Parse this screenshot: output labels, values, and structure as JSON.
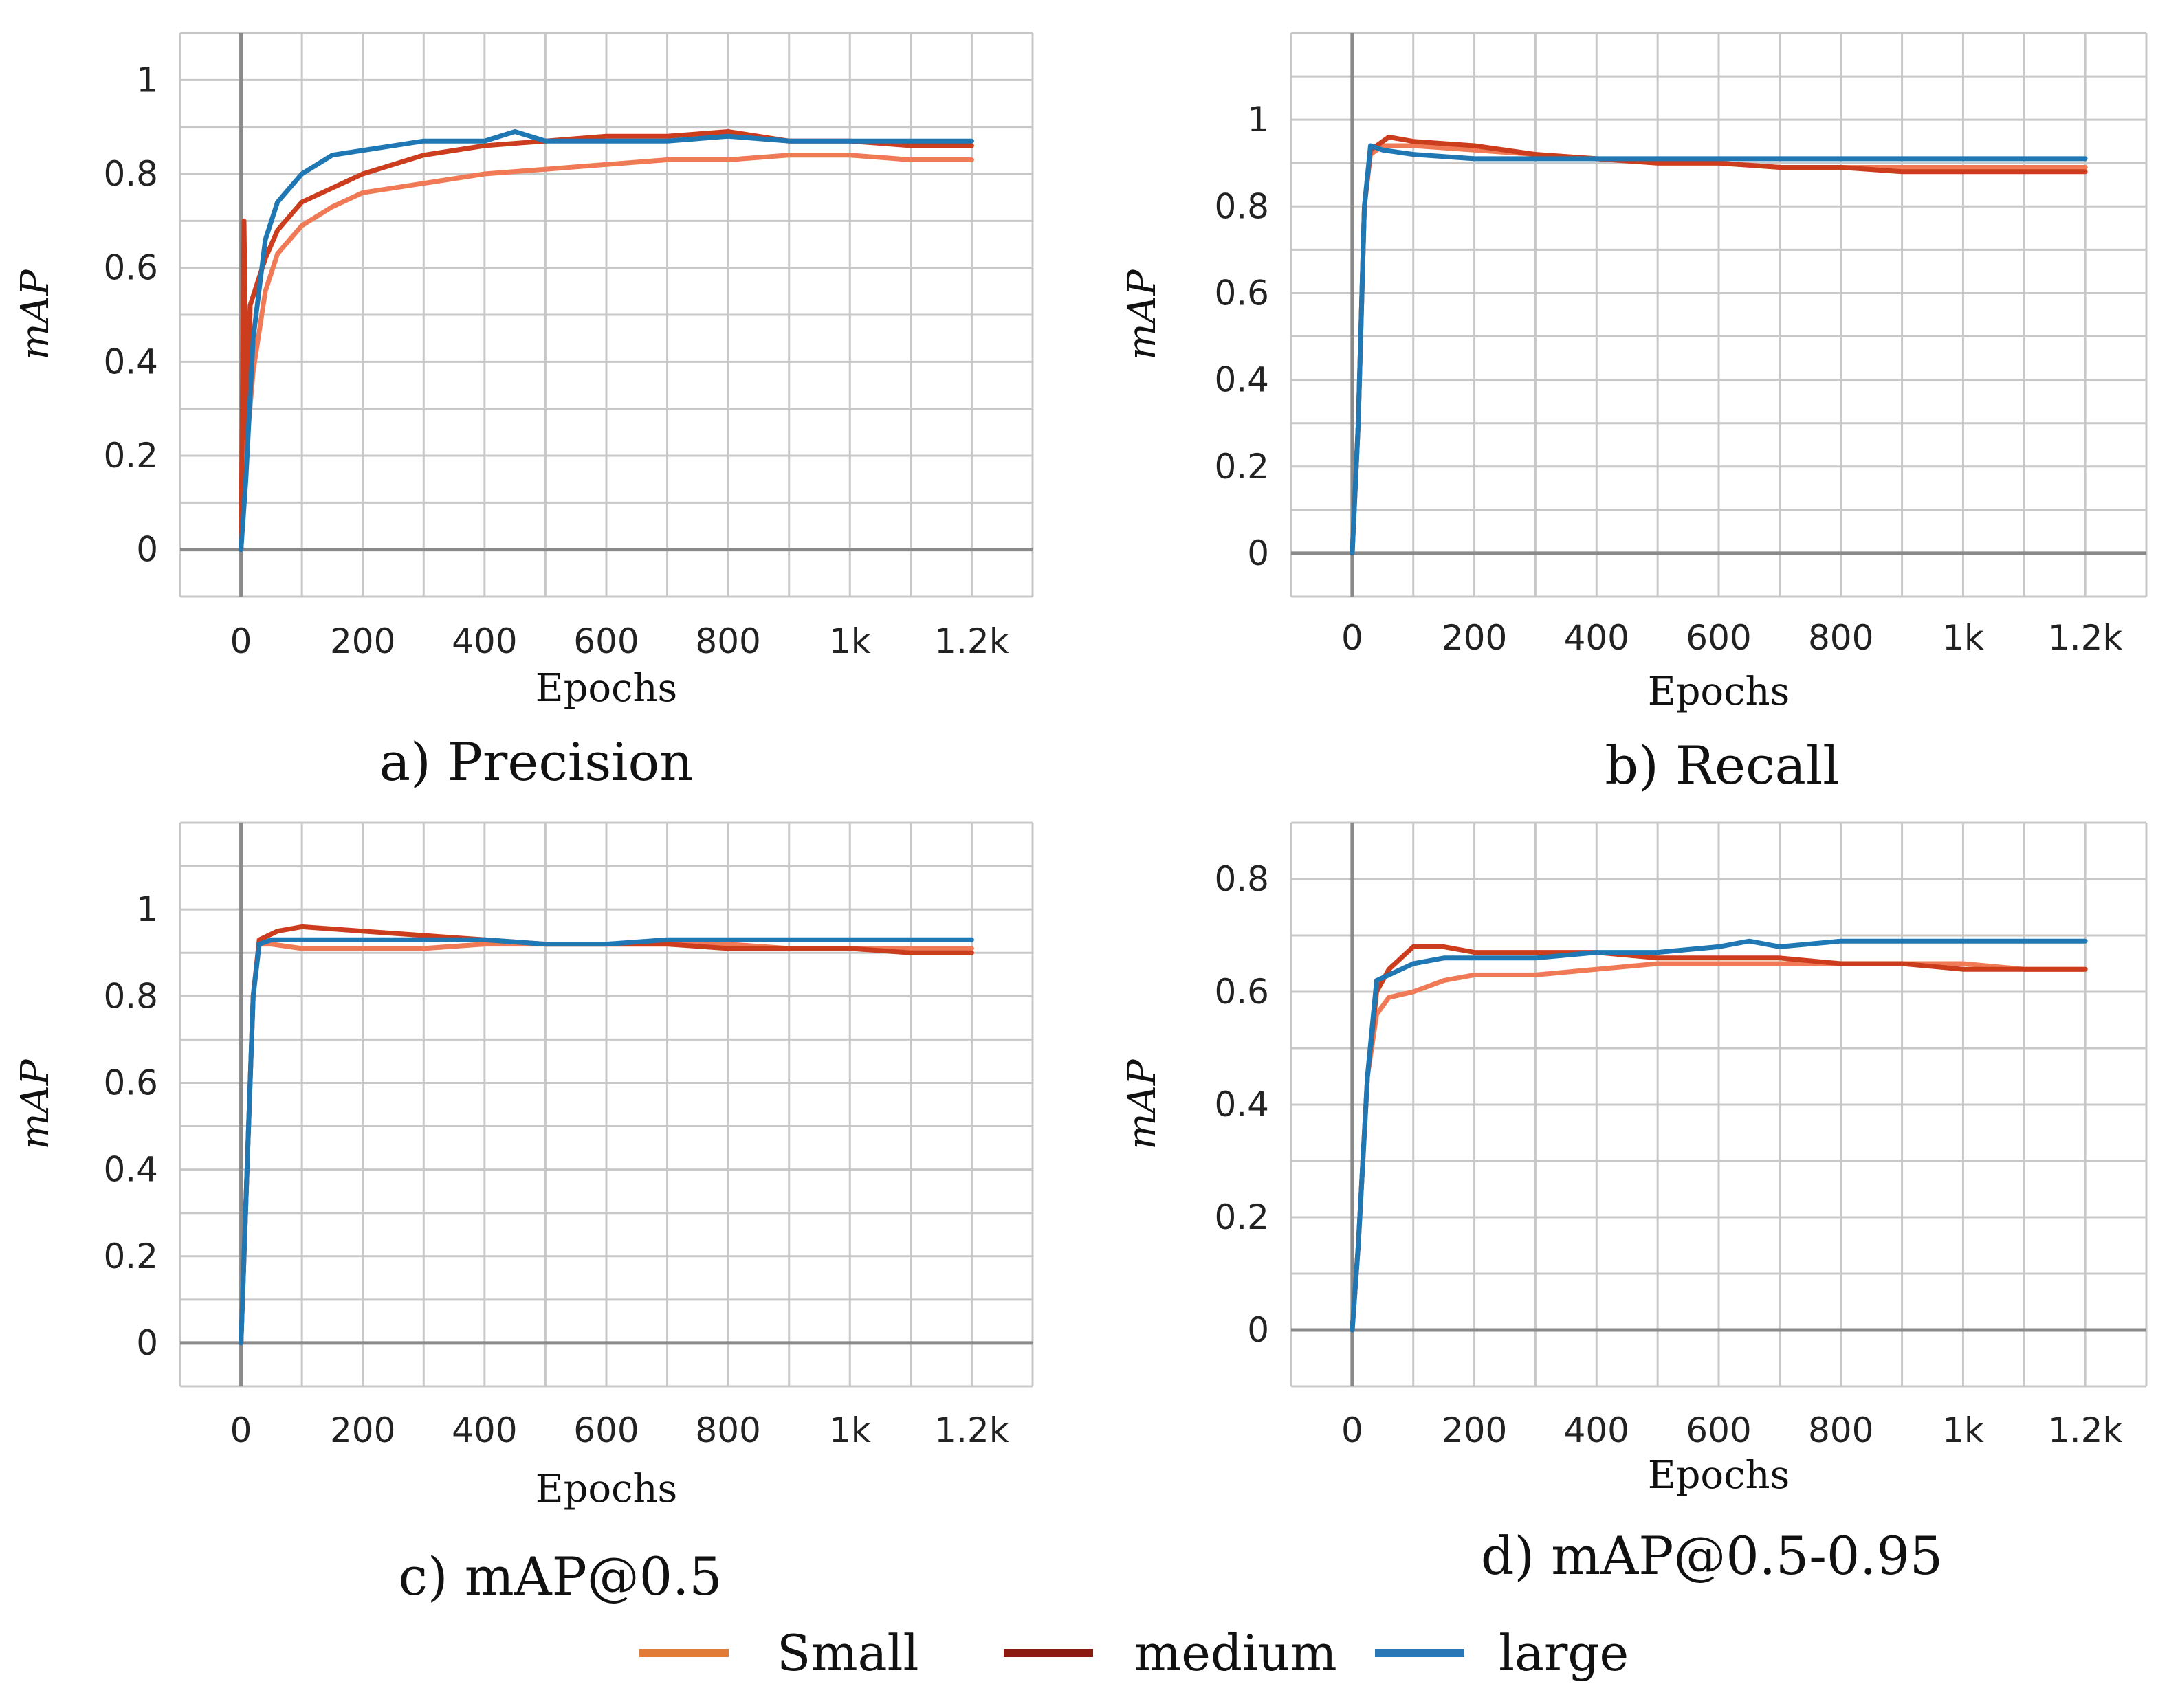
{
  "chart_data": [
    {
      "type": "line",
      "caption": "a) Precision",
      "xlabel": "Epochs",
      "ylabel": "mAP",
      "xlim": [
        -100,
        1300
      ],
      "ylim": [
        -0.1,
        1.1
      ],
      "x_ticks": [
        0,
        200,
        400,
        600,
        800,
        1000,
        1200
      ],
      "x_tick_labels": [
        "0",
        "200",
        "400",
        "600",
        "800",
        "1k",
        "1.2k"
      ],
      "y_ticks": [
        0,
        0.2,
        0.4,
        0.6,
        0.8,
        1
      ],
      "y_tick_labels": [
        "0",
        "0.2",
        "0.4",
        "0.6",
        "0.8",
        "1"
      ],
      "grid": true,
      "series": [
        {
          "name": "Small",
          "x": [
            0,
            8,
            20,
            40,
            60,
            100,
            150,
            200,
            300,
            400,
            500,
            600,
            700,
            800,
            900,
            1000,
            1100,
            1200
          ],
          "y": [
            0,
            0.2,
            0.38,
            0.55,
            0.63,
            0.69,
            0.73,
            0.76,
            0.78,
            0.8,
            0.81,
            0.82,
            0.83,
            0.83,
            0.84,
            0.84,
            0.83,
            0.83
          ]
        },
        {
          "name": "medium",
          "x": [
            0,
            5,
            10,
            15,
            25,
            40,
            60,
            100,
            150,
            200,
            300,
            400,
            500,
            600,
            700,
            800,
            900,
            1000,
            1100,
            1200
          ],
          "y": [
            0,
            0.7,
            0.2,
            0.52,
            0.56,
            0.62,
            0.68,
            0.74,
            0.77,
            0.8,
            0.84,
            0.86,
            0.87,
            0.88,
            0.88,
            0.89,
            0.87,
            0.87,
            0.86,
            0.86
          ]
        },
        {
          "name": "large",
          "x": [
            0,
            8,
            20,
            40,
            60,
            100,
            150,
            200,
            300,
            400,
            450,
            500,
            600,
            700,
            800,
            900,
            1000,
            1100,
            1200
          ],
          "y": [
            0,
            0.15,
            0.45,
            0.66,
            0.74,
            0.8,
            0.84,
            0.85,
            0.87,
            0.87,
            0.89,
            0.87,
            0.87,
            0.87,
            0.88,
            0.87,
            0.87,
            0.87,
            0.87
          ]
        }
      ]
    },
    {
      "type": "line",
      "caption": "b) Recall",
      "xlabel": "Epochs",
      "ylabel": "mAP",
      "xlim": [
        -100,
        1300
      ],
      "ylim": [
        -0.1,
        1.2
      ],
      "x_ticks": [
        0,
        200,
        400,
        600,
        800,
        1000,
        1200
      ],
      "x_tick_labels": [
        "0",
        "200",
        "400",
        "600",
        "800",
        "1k",
        "1.2k"
      ],
      "y_ticks": [
        0,
        0.2,
        0.4,
        0.6,
        0.8,
        1
      ],
      "y_tick_labels": [
        "0",
        "0.2",
        "0.4",
        "0.6",
        "0.8",
        "1"
      ],
      "grid": true,
      "series": [
        {
          "name": "Small",
          "x": [
            0,
            10,
            20,
            30,
            50,
            100,
            200,
            300,
            400,
            500,
            600,
            700,
            800,
            900,
            1000,
            1100,
            1200
          ],
          "y": [
            0,
            0.3,
            0.8,
            0.92,
            0.94,
            0.94,
            0.93,
            0.92,
            0.91,
            0.9,
            0.9,
            0.89,
            0.89,
            0.89,
            0.89,
            0.89,
            0.89
          ]
        },
        {
          "name": "medium",
          "x": [
            0,
            10,
            20,
            30,
            60,
            100,
            200,
            300,
            400,
            500,
            600,
            700,
            800,
            900,
            1000,
            1100,
            1200
          ],
          "y": [
            0,
            0.3,
            0.8,
            0.93,
            0.96,
            0.95,
            0.94,
            0.92,
            0.91,
            0.9,
            0.9,
            0.89,
            0.89,
            0.88,
            0.88,
            0.88,
            0.88
          ]
        },
        {
          "name": "large",
          "x": [
            0,
            10,
            20,
            30,
            50,
            100,
            200,
            300,
            400,
            500,
            600,
            700,
            800,
            900,
            1000,
            1100,
            1200
          ],
          "y": [
            0,
            0.3,
            0.8,
            0.94,
            0.93,
            0.92,
            0.91,
            0.91,
            0.91,
            0.91,
            0.91,
            0.91,
            0.91,
            0.91,
            0.91,
            0.91,
            0.91
          ]
        }
      ]
    },
    {
      "type": "line",
      "caption": "c) mAP@0.5",
      "xlabel": "Epochs",
      "ylabel": "mAP",
      "xlim": [
        -100,
        1300
      ],
      "ylim": [
        -0.1,
        1.2
      ],
      "x_ticks": [
        0,
        200,
        400,
        600,
        800,
        1000,
        1200
      ],
      "x_tick_labels": [
        "0",
        "200",
        "400",
        "600",
        "800",
        "1k",
        "1.2k"
      ],
      "y_ticks": [
        0,
        0.2,
        0.4,
        0.6,
        0.8,
        1
      ],
      "y_tick_labels": [
        "0",
        "0.2",
        "0.4",
        "0.6",
        "0.8",
        "1"
      ],
      "grid": true,
      "series": [
        {
          "name": "Small",
          "x": [
            0,
            10,
            20,
            30,
            50,
            100,
            200,
            300,
            400,
            500,
            600,
            700,
            800,
            900,
            1000,
            1100,
            1200
          ],
          "y": [
            0,
            0.4,
            0.8,
            0.92,
            0.92,
            0.91,
            0.91,
            0.91,
            0.92,
            0.92,
            0.92,
            0.92,
            0.92,
            0.91,
            0.91,
            0.91,
            0.91
          ]
        },
        {
          "name": "medium",
          "x": [
            0,
            10,
            20,
            30,
            60,
            100,
            200,
            300,
            400,
            500,
            600,
            700,
            800,
            900,
            1000,
            1100,
            1200
          ],
          "y": [
            0,
            0.4,
            0.8,
            0.93,
            0.95,
            0.96,
            0.95,
            0.94,
            0.93,
            0.92,
            0.92,
            0.92,
            0.91,
            0.91,
            0.91,
            0.9,
            0.9
          ]
        },
        {
          "name": "large",
          "x": [
            0,
            10,
            20,
            30,
            50,
            100,
            200,
            300,
            400,
            500,
            600,
            700,
            800,
            900,
            1000,
            1100,
            1200
          ],
          "y": [
            0,
            0.4,
            0.8,
            0.92,
            0.93,
            0.93,
            0.93,
            0.93,
            0.93,
            0.92,
            0.92,
            0.93,
            0.93,
            0.93,
            0.93,
            0.93,
            0.93
          ]
        }
      ]
    },
    {
      "type": "line",
      "caption": "d) mAP@0.5-0.95",
      "xlabel": "Epochs",
      "ylabel": "mAP",
      "xlim": [
        -100,
        1300
      ],
      "ylim": [
        -0.1,
        0.9
      ],
      "x_ticks": [
        0,
        200,
        400,
        600,
        800,
        1000,
        1200
      ],
      "x_tick_labels": [
        "0",
        "200",
        "400",
        "600",
        "800",
        "1k",
        "1.2k"
      ],
      "y_ticks": [
        0,
        0.2,
        0.4,
        0.6,
        0.8
      ],
      "y_tick_labels": [
        "0",
        "0.2",
        "0.4",
        "0.6",
        "0.8"
      ],
      "grid": true,
      "series": [
        {
          "name": "Small",
          "x": [
            0,
            10,
            25,
            40,
            60,
            100,
            150,
            200,
            300,
            400,
            500,
            600,
            700,
            800,
            900,
            1000,
            1100,
            1200
          ],
          "y": [
            0,
            0.15,
            0.45,
            0.56,
            0.59,
            0.6,
            0.62,
            0.63,
            0.63,
            0.64,
            0.65,
            0.65,
            0.65,
            0.65,
            0.65,
            0.65,
            0.64,
            0.64
          ]
        },
        {
          "name": "medium",
          "x": [
            0,
            10,
            25,
            40,
            60,
            100,
            150,
            200,
            300,
            400,
            500,
            600,
            700,
            800,
            900,
            1000,
            1100,
            1200
          ],
          "y": [
            0,
            0.15,
            0.45,
            0.6,
            0.64,
            0.68,
            0.68,
            0.67,
            0.67,
            0.67,
            0.66,
            0.66,
            0.66,
            0.65,
            0.65,
            0.64,
            0.64,
            0.64
          ]
        },
        {
          "name": "large",
          "x": [
            0,
            10,
            25,
            40,
            60,
            100,
            150,
            200,
            300,
            400,
            500,
            600,
            650,
            700,
            800,
            900,
            1000,
            1100,
            1200
          ],
          "y": [
            0,
            0.15,
            0.45,
            0.62,
            0.63,
            0.65,
            0.66,
            0.66,
            0.66,
            0.67,
            0.67,
            0.68,
            0.69,
            0.68,
            0.69,
            0.69,
            0.69,
            0.69,
            0.69
          ]
        }
      ]
    }
  ],
  "legend": {
    "placement": "bottom",
    "items": [
      {
        "label": "Small",
        "color": "#e07b39"
      },
      {
        "label": "medium",
        "color": "#8b1a10"
      },
      {
        "label": "large",
        "color": "#2b76b5"
      }
    ]
  },
  "colors": {
    "Small": "#f07a55",
    "medium": "#cc3d1e",
    "large": "#1f78b4",
    "grid": "#c8c8c8",
    "zero_axis": "#8a8a8a"
  }
}
